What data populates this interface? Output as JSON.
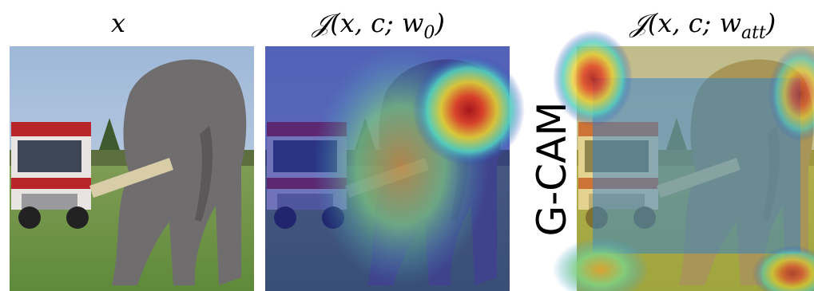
{
  "panels": [
    {
      "label": {
        "text": "x"
      }
    },
    {
      "label": {
        "text": "𝒥(x, c; w",
        "subscript": "0",
        "suffix": ")"
      }
    },
    {
      "label": {
        "text": "𝒥(x, c; w",
        "subscript": "att",
        "suffix": ")"
      }
    }
  ],
  "side_label": "G-CAM"
}
